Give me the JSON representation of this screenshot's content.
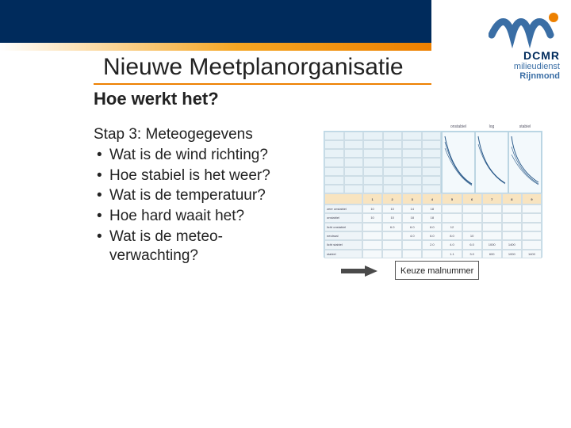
{
  "logo": {
    "brand": "DCMR",
    "line2": "milieudienst",
    "line3": "Rijnmond",
    "wave_color": "#3a6ea5",
    "wave_accent": "#ed8000"
  },
  "title": "Nieuwe Meetplanorganisatie",
  "subheading": "Hoe werkt het?",
  "step_label": "Stap 3: Meteogegevens",
  "bullets": [
    "Wat is de wind richting?",
    "Hoe stabiel is het weer?",
    "Wat is de temperatuur?",
    "Hoe hard waait het?",
    "Wat is de meteo- verwachting?"
  ],
  "caption": "Keuze malnummer",
  "colors": {
    "header_bg": "#002b5c",
    "accent": "#ed8000",
    "panel_bg": "#82bcd8"
  },
  "figure": {
    "lower_table": {
      "headers": [
        "",
        "1",
        "2",
        "3",
        "4",
        "5",
        "6",
        "7",
        "8",
        "9"
      ],
      "row_labels": [
        "zeer onstabiel",
        "onstabiel",
        "licht onstabiel",
        "neutraal",
        "licht stabiel",
        "stabiel"
      ],
      "rows": [
        [
          "10",
          "10",
          "14",
          "18",
          "",
          "",
          "",
          "",
          ""
        ],
        [
          "10",
          "10",
          "18",
          "18",
          "",
          "",
          "",
          "",
          ""
        ],
        [
          "",
          "6.0",
          "6.0",
          "8.0",
          "12",
          "",
          "",
          "",
          ""
        ],
        [
          "",
          "",
          "4.0",
          "6.0",
          "8.0",
          "10",
          "",
          "",
          ""
        ],
        [
          "",
          "",
          "",
          "2.0",
          "4.0",
          "6.0",
          "1000",
          "1400",
          ""
        ],
        [
          "",
          "",
          "",
          "",
          "1.1",
          "3.0",
          "600",
          "1000",
          "1400"
        ]
      ],
      "header_bg": "#f8e4c0"
    },
    "mini_charts": {
      "labels": [
        "onstabiel",
        "log",
        "stabiel"
      ],
      "curve_color": "#2a5a8a"
    }
  }
}
